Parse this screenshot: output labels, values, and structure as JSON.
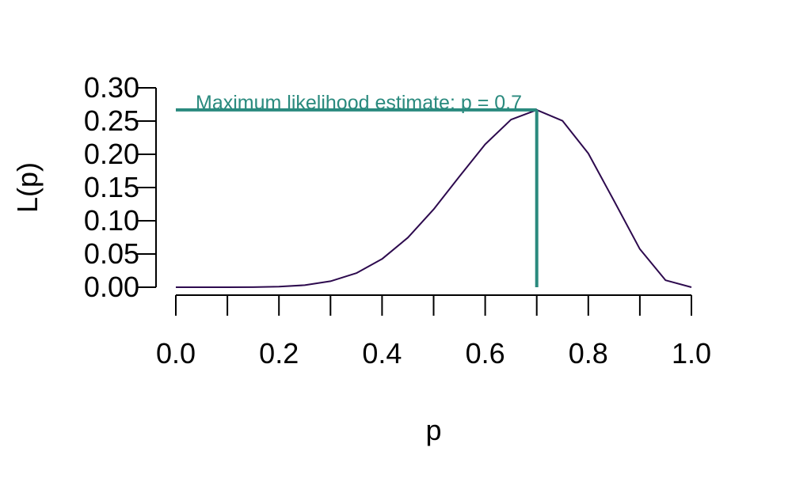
{
  "chart_data": {
    "type": "line",
    "title": "",
    "xlabel": "p",
    "ylabel": "L(p)",
    "xlim": [
      0.0,
      1.0
    ],
    "ylim": [
      0.0,
      0.3
    ],
    "x_ticks": [
      0.0,
      0.1,
      0.2,
      0.3,
      0.4,
      0.5,
      0.6,
      0.7,
      0.8,
      0.9,
      1.0
    ],
    "x_tick_labels": [
      "0.0",
      "0.2",
      "0.4",
      "0.6",
      "0.8",
      "1.0"
    ],
    "x_tick_label_values": [
      0.0,
      0.2,
      0.4,
      0.6,
      0.8,
      1.0
    ],
    "y_ticks": [
      0.0,
      0.05,
      0.1,
      0.15,
      0.2,
      0.25,
      0.3
    ],
    "y_tick_labels": [
      "0.00",
      "0.05",
      "0.10",
      "0.15",
      "0.20",
      "0.25",
      "0.30"
    ],
    "grid": false,
    "series": [
      {
        "color": "#2d0a4e",
        "x": [
          0.0,
          0.05,
          0.1,
          0.15,
          0.2,
          0.25,
          0.3,
          0.35,
          0.4,
          0.45,
          0.5,
          0.55,
          0.6,
          0.65,
          0.7,
          0.75,
          0.8,
          0.85,
          0.9,
          0.95,
          1.0
        ],
        "y": [
          0.0,
          0.0,
          0.0,
          0.0001,
          0.0008,
          0.0031,
          0.009,
          0.0212,
          0.0425,
          0.0746,
          0.1172,
          0.1665,
          0.215,
          0.2522,
          0.2668,
          0.2503,
          0.2013,
          0.1298,
          0.0574,
          0.0105,
          0.0
        ]
      }
    ],
    "annotations": [
      {
        "text": "Maximum likelihood estimate: p = 0.7",
        "color": "#2a8a7e",
        "mle_p": 0.7,
        "mle_value": 0.2668
      }
    ]
  }
}
